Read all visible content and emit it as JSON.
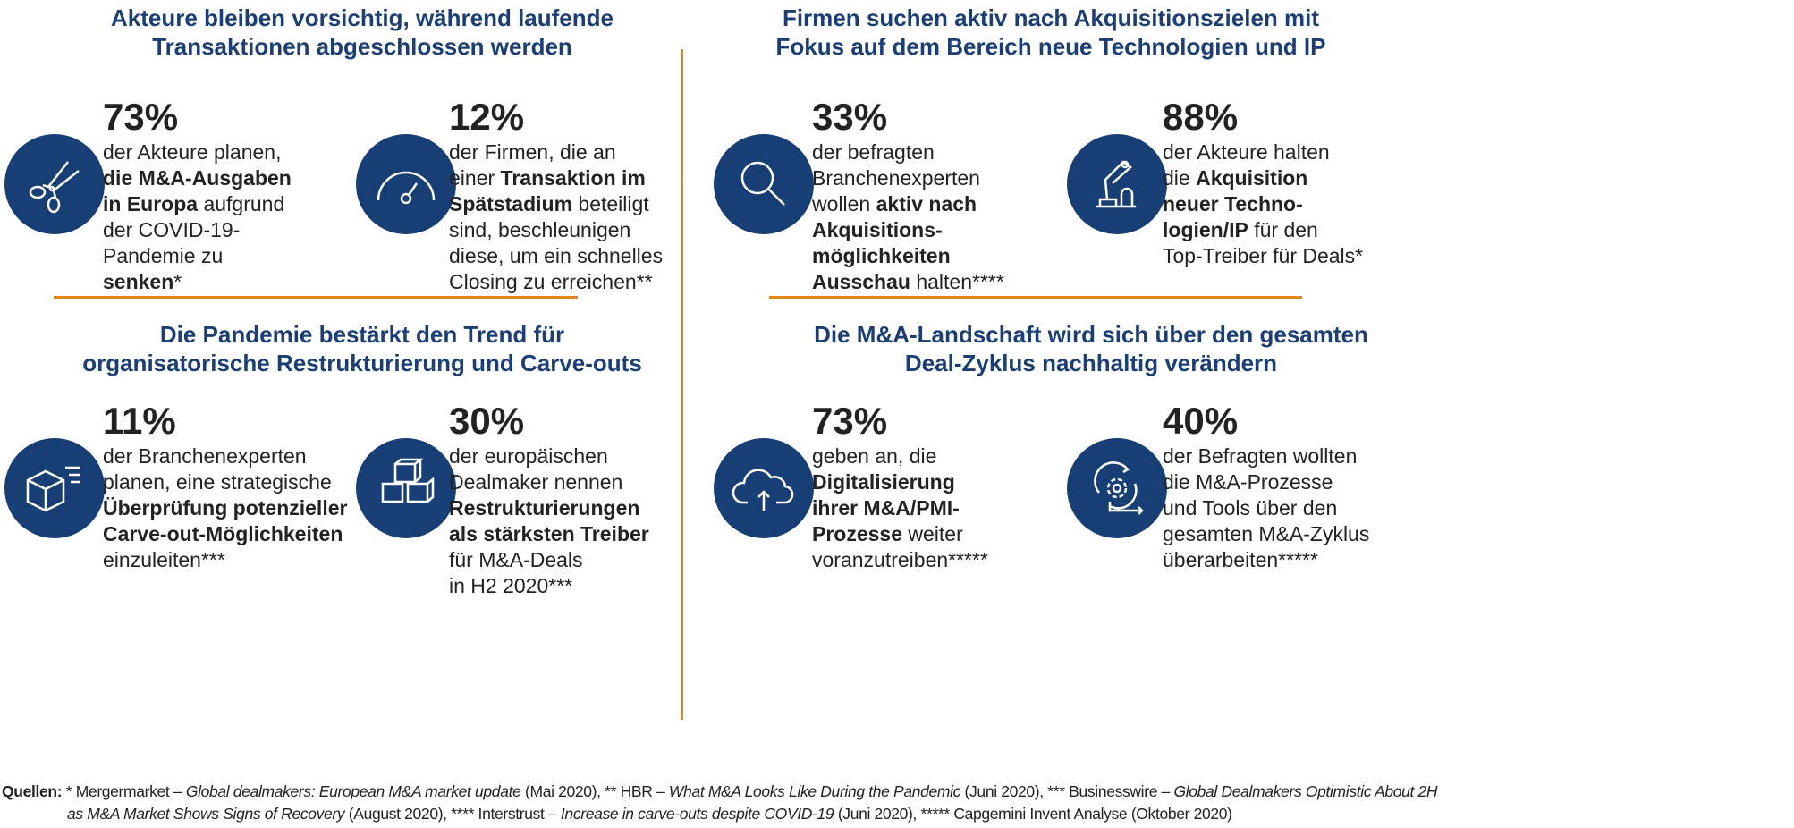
{
  "sections": [
    {
      "title": [
        "Akteure bleiben vorsichtig, während laufende",
        "Transaktionen abgeschlossen werden"
      ]
    },
    {
      "title": [
        "Firmen suchen aktiv nach Akquisitionszielen mit",
        "Fokus auf dem Bereich neue Technologien und IP"
      ]
    },
    {
      "title": [
        "Die Pandemie bestärkt den Trend für",
        "organisatorische Restrukturierung und Carve-outs"
      ]
    },
    {
      "title": [
        "Die M&A-Landschaft wird sich über den gesamten",
        "Deal-Zyklus nachhaltig verändern"
      ]
    }
  ],
  "stats": [
    {
      "icon": "scissors-icon",
      "value": "73%",
      "lines": [
        [
          {
            "t": "der Akteure planen,"
          }
        ],
        [
          {
            "t": "die M&A-Ausgaben",
            "b": true
          }
        ],
        [
          {
            "t": "in Europa",
            "b": true
          },
          {
            "t": " aufgrund"
          }
        ],
        [
          {
            "t": "der COVID-19-"
          }
        ],
        [
          {
            "t": "Pandemie zu"
          }
        ],
        [
          {
            "t": "senken",
            "b": true
          },
          {
            "t": "*"
          }
        ]
      ]
    },
    {
      "icon": "gauge-icon",
      "value": "12%",
      "lines": [
        [
          {
            "t": "der Firmen, die an"
          }
        ],
        [
          {
            "t": "einer "
          },
          {
            "t": "Transaktion im",
            "b": true
          }
        ],
        [
          {
            "t": "Spätstadium",
            "b": true
          },
          {
            "t": " beteiligt"
          }
        ],
        [
          {
            "t": "sind, beschleunigen"
          }
        ],
        [
          {
            "t": "diese, um ein schnelles"
          }
        ],
        [
          {
            "t": "Closing zu erreichen**"
          }
        ]
      ]
    },
    {
      "icon": "magnifier-icon",
      "value": "33%",
      "lines": [
        [
          {
            "t": "der befragten"
          }
        ],
        [
          {
            "t": "Branchenexperten"
          }
        ],
        [
          {
            "t": "wollen "
          },
          {
            "t": "aktiv nach",
            "b": true
          }
        ],
        [
          {
            "t": "Akquisitions-",
            "b": true
          }
        ],
        [
          {
            "t": "möglichkeiten",
            "b": true
          }
        ],
        [
          {
            "t": "Ausschau",
            "b": true
          },
          {
            "t": " halten****"
          }
        ]
      ]
    },
    {
      "icon": "robot-arm-icon",
      "value": "88%",
      "lines": [
        [
          {
            "t": "der Akteure halten"
          }
        ],
        [
          {
            "t": "die "
          },
          {
            "t": "Akquisition",
            "b": true
          }
        ],
        [
          {
            "t": "neuer Techno-",
            "b": true
          }
        ],
        [
          {
            "t": "logien/IP",
            "b": true
          },
          {
            "t": " für den"
          }
        ],
        [
          {
            "t": "Top-Treiber für Deals*"
          }
        ]
      ]
    },
    {
      "icon": "box-icon",
      "value": "11%",
      "lines": [
        [
          {
            "t": "der Branchenexperten"
          }
        ],
        [
          {
            "t": "planen, eine strategische"
          }
        ],
        [
          {
            "t": "Überprüfung potenzieller",
            "b": true
          }
        ],
        [
          {
            "t": "Carve-out-Möglichkeiten",
            "b": true
          }
        ],
        [
          {
            "t": "einzuleiten***"
          }
        ]
      ]
    },
    {
      "icon": "cubes-icon",
      "value": "30%",
      "lines": [
        [
          {
            "t": "der europäischen"
          }
        ],
        [
          {
            "t": "Dealmaker nennen"
          }
        ],
        [
          {
            "t": "Restrukturierungen",
            "b": true
          }
        ],
        [
          {
            "t": "als stärksten Treiber",
            "b": true
          }
        ],
        [
          {
            "t": "für M&A-Deals"
          }
        ],
        [
          {
            "t": "in H2 2020***"
          }
        ]
      ]
    },
    {
      "icon": "cloud-upload-icon",
      "value": "73%",
      "lines": [
        [
          {
            "t": "geben an, die"
          }
        ],
        [
          {
            "t": "Digitalisierung",
            "b": true
          }
        ],
        [
          {
            "t": "ihrer M&A/PMI-",
            "b": true
          }
        ],
        [
          {
            "t": "Prozesse",
            "b": true
          },
          {
            "t": " weiter"
          }
        ],
        [
          {
            "t": "voranzutreiben*****"
          }
        ]
      ]
    },
    {
      "icon": "gear-cycle-icon",
      "value": "40%",
      "lines": [
        [
          {
            "t": "der Befragten wollten"
          }
        ],
        [
          {
            "t": "die M&A-Prozesse"
          }
        ],
        [
          {
            "t": "und Tools über den"
          }
        ],
        [
          {
            "t": "gesamten M&A-Zyklus"
          }
        ],
        [
          {
            "t": "überarbeiten*****"
          }
        ]
      ]
    }
  ],
  "footer": {
    "lines": [
      [
        {
          "t": "Quellen:",
          "b": true
        },
        {
          "t": " * Mergermarket – "
        },
        {
          "t": "Global dealmakers: European M&A market update",
          "i": true
        },
        {
          "t": " (Mai 2020), ** HBR – "
        },
        {
          "t": "What M&A Looks Like During the Pandemic",
          "i": true
        },
        {
          "t": " (Juni 2020), *** Businesswire – "
        },
        {
          "t": "Global Dealmakers Optimistic About 2H",
          "i": true
        }
      ],
      [
        {
          "t": "as M&A Market Shows Signs of Recovery",
          "i": true
        },
        {
          "t": " (August 2020), **** Interstrust – "
        },
        {
          "t": "Increase in carve-outs despite COVID-19",
          "i": true
        },
        {
          "t": " (Juni 2020), ***** Capgemini Invent Analyse (Oktober 2020)"
        }
      ]
    ]
  }
}
